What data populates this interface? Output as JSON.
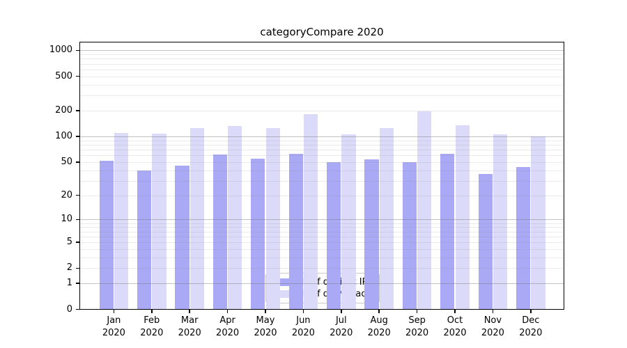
{
  "chart_data": {
    "type": "bar",
    "title": "categoryCompare 2020",
    "x_year": "2020",
    "categories": [
      "Jan",
      "Feb",
      "Mar",
      "Apr",
      "May",
      "Jun",
      "Jul",
      "Aug",
      "Sep",
      "Oct",
      "Nov",
      "Dec"
    ],
    "series": [
      {
        "name": "Nb of distinct IPs",
        "color": "#a9a9f5",
        "values": [
          52,
          40,
          45,
          61,
          55,
          63,
          50,
          54,
          50,
          62,
          36,
          44
        ]
      },
      {
        "name": "Nb of downloads",
        "color": "#dbdbf9",
        "values": [
          110,
          108,
          126,
          132,
          124,
          182,
          105,
          125,
          195,
          135,
          106,
          100
        ]
      }
    ],
    "y_ticks": [
      1000,
      500,
      200,
      100,
      50,
      20,
      10,
      5,
      2,
      1,
      0
    ],
    "y_scale": "log10(value+1)",
    "ylim": [
      0,
      1200
    ],
    "grid": true,
    "legend_position": "lower center"
  }
}
